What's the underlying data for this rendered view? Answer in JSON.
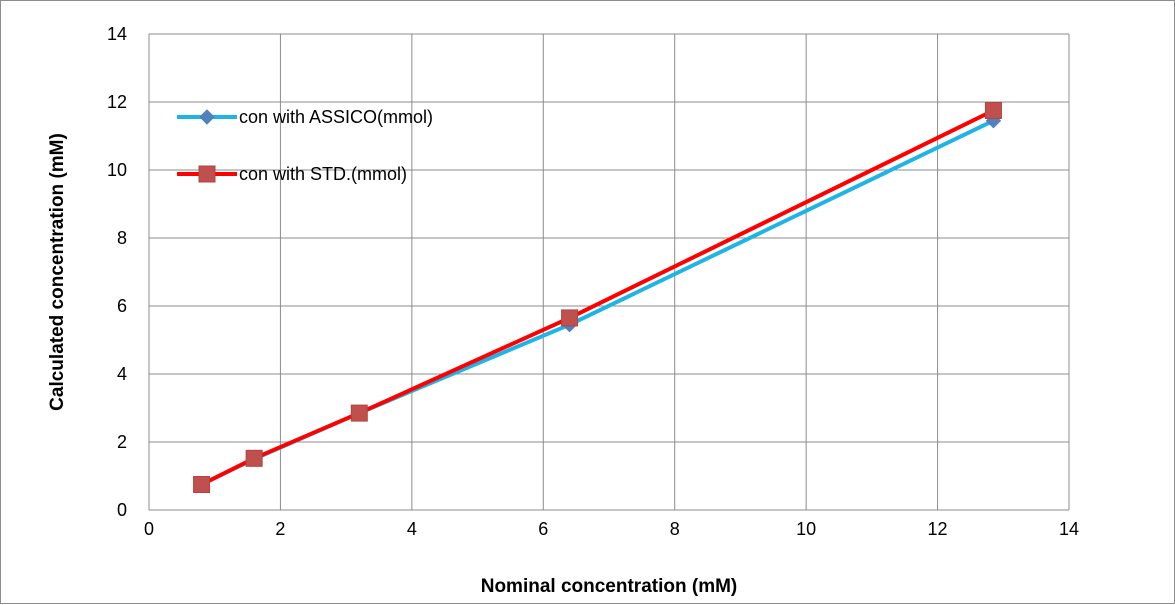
{
  "chart_data": {
    "type": "line",
    "title": "",
    "xlabel": "Nominal concentration (mM)",
    "ylabel": "Calculated concentration (mM)",
    "xlim": [
      0,
      14
    ],
    "ylim": [
      0,
      14
    ],
    "xticks": [
      "0",
      "2",
      "4",
      "6",
      "8",
      "10",
      "12",
      "14"
    ],
    "yticks": [
      "0",
      "2",
      "4",
      "6",
      "8",
      "10",
      "12",
      "14"
    ],
    "grid": true,
    "legend_position": "top-left",
    "series": [
      {
        "name": "con with ASSICO(mmol)",
        "color": "#1FB4E6",
        "marker": "diamond",
        "marker_color": "#4F81BD",
        "x": [
          0.8,
          1.6,
          3.2,
          6.4,
          12.85
        ],
        "y": [
          0.75,
          1.5,
          2.85,
          5.45,
          11.45
        ]
      },
      {
        "name": "con with STD.(mmol)",
        "color": "#FF0000",
        "marker": "square",
        "marker_color": "#C0504D",
        "x": [
          0.8,
          1.6,
          3.2,
          6.4,
          12.85
        ],
        "y": [
          0.75,
          1.52,
          2.85,
          5.65,
          11.75
        ]
      }
    ]
  }
}
